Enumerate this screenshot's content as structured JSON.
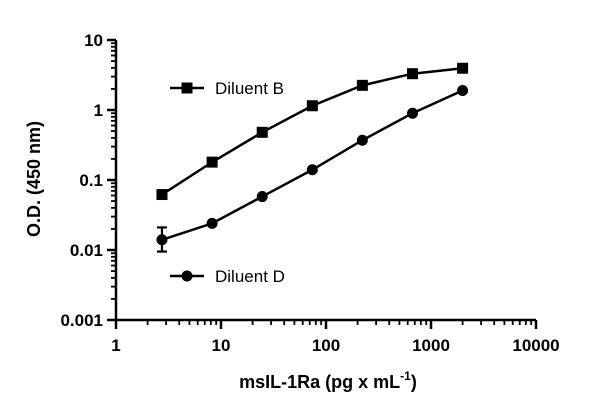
{
  "chart_data": {
    "type": "scatter",
    "xscale": "log",
    "yscale": "log",
    "xlim": [
      1,
      10000
    ],
    "ylim": [
      0.001,
      10
    ],
    "xlabel": "msIL-1Ra (pg x mL",
    "xlabel_superscript": "-1",
    "xlabel_suffix": ")",
    "ylabel": "O.D. (450 nm)",
    "x_ticks": [
      1,
      10,
      100,
      1000,
      10000
    ],
    "x_tick_labels": [
      "1",
      "10",
      "100",
      "1000",
      "10000"
    ],
    "y_ticks": [
      0.001,
      0.01,
      0.1,
      1,
      10
    ],
    "y_tick_labels": [
      "0.001",
      "0.01",
      "0.1",
      "1",
      "10"
    ],
    "grid": false,
    "series": [
      {
        "name": "Diluent B",
        "marker": "square",
        "x": [
          2.74,
          8.23,
          24.7,
          74.1,
          222,
          667,
          2000
        ],
        "y": [
          0.062,
          0.18,
          0.48,
          1.15,
          2.25,
          3.3,
          3.95
        ]
      },
      {
        "name": "Diluent D",
        "marker": "circle",
        "x": [
          2.74,
          8.23,
          24.7,
          74.1,
          222,
          667,
          2000
        ],
        "y": [
          0.014,
          0.024,
          0.058,
          0.14,
          0.37,
          0.9,
          1.9
        ],
        "error": [
          [
            0.0095,
            0.021
          ],
          null,
          null,
          null,
          null,
          null,
          null
        ]
      }
    ],
    "legend": [
      {
        "label": "Diluent B",
        "marker": "square"
      },
      {
        "label": "Diluent D",
        "marker": "circle"
      }
    ]
  }
}
